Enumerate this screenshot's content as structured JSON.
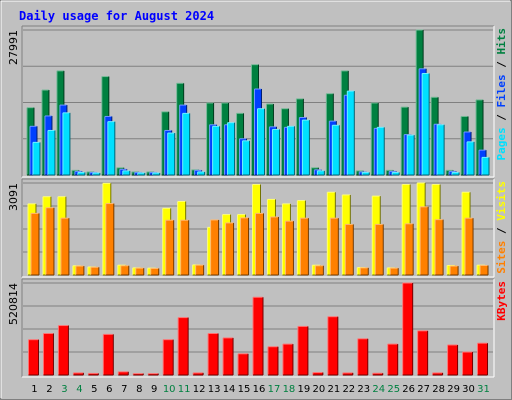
{
  "chart_data": {
    "type": "bar",
    "title": "Daily usage for August 2024",
    "categories": [
      "1",
      "2",
      "3",
      "4",
      "5",
      "6",
      "7",
      "8",
      "9",
      "10",
      "11",
      "12",
      "13",
      "14",
      "15",
      "16",
      "17",
      "18",
      "19",
      "20",
      "21",
      "22",
      "23",
      "24",
      "25",
      "26",
      "27",
      "28",
      "29",
      "30",
      "31"
    ],
    "weekend_days": [
      "3",
      "4",
      "10",
      "11",
      "17",
      "18",
      "24",
      "25",
      "31"
    ],
    "colors": {
      "hits": "#008040",
      "files": "#0040ff",
      "pages": "#00e0ff",
      "visits": "#ffff00",
      "sites": "#ff8000",
      "kbytes": "#ff0000",
      "title": "#0000ff",
      "weekday": "#000000",
      "weekend": "#008040"
    },
    "panels": [
      {
        "id": "requests",
        "max_label": "27991",
        "ymax": 27991,
        "side_labels": [
          {
            "text": "Pages",
            "color": "#00e0ff"
          },
          {
            "text": " / ",
            "color": "#000000"
          },
          {
            "text": "Files",
            "color": "#0040ff"
          },
          {
            "text": " / ",
            "color": "#000000"
          },
          {
            "text": "Hits",
            "color": "#008040"
          }
        ],
        "series": [
          {
            "key": "hits",
            "color": "#008040",
            "values": [
              13000,
              16400,
              20100,
              900,
              600,
              19000,
              1400,
              600,
              600,
              12200,
              17700,
              1000,
              13900,
              13900,
              11900,
              21300,
              13700,
              12800,
              14700,
              1400,
              15700,
              20100,
              800,
              13900,
              900,
              13100,
              27991,
              15000,
              900,
              11300,
              14500
            ]
          },
          {
            "key": "files",
            "color": "#0040ff",
            "values": [
              9400,
              11400,
              13500,
              700,
              500,
              11300,
              1100,
              500,
              500,
              8600,
              13500,
              900,
              9700,
              9700,
              7000,
              16600,
              9300,
              9200,
              11100,
              1000,
              10400,
              15400,
              600,
              9000,
              700,
              7800,
              20500,
              9800,
              700,
              8300,
              4800
            ]
          },
          {
            "key": "pages",
            "color": "#00e0ff",
            "values": [
              6300,
              8600,
              12000,
              500,
              400,
              10300,
              800,
              400,
              400,
              8100,
              11900,
              600,
              9400,
              10100,
              6600,
              12800,
              8800,
              9400,
              10600,
              800,
              9600,
              16200,
              500,
              9200,
              500,
              7700,
              19600,
              9700,
              500,
              6400,
              3400
            ]
          }
        ]
      },
      {
        "id": "visits",
        "max_label": "3091",
        "ymax": 3091,
        "side_labels": [
          {
            "text": "Sites",
            "color": "#ff8000"
          },
          {
            "text": " / ",
            "color": "#000000"
          },
          {
            "text": "Visits",
            "color": "#ffff00"
          }
        ],
        "series": [
          {
            "key": "visits",
            "color": "#ffff00",
            "values": [
              2390,
              2630,
              2630,
              310,
              270,
              3080,
              330,
              240,
              230,
              2240,
              2470,
              340,
              1600,
              2030,
              2030,
              3040,
              2540,
              2390,
              2500,
              330,
              2780,
              2690,
              250,
              2650,
              240,
              3040,
              3090,
              3040,
              320,
              2780,
              330
            ]
          },
          {
            "key": "sites",
            "color": "#ff8000",
            "values": [
              2070,
              2260,
              1910,
              300,
              260,
              2400,
              310,
              230,
              220,
              1840,
              1840,
              330,
              1850,
              1750,
              1920,
              2070,
              1950,
              1810,
              1910,
              310,
              1910,
              1700,
              240,
              1700,
              230,
              1720,
              2290,
              1860,
              300,
              1910,
              320
            ]
          }
        ]
      },
      {
        "id": "kbytes",
        "max_label": "520814",
        "ymax": 520814,
        "side_labels": [
          {
            "text": "KBytes",
            "color": "#ff0000"
          }
        ],
        "series": [
          {
            "key": "kbytes",
            "color": "#ff0000",
            "values": [
              200000,
              235000,
              280000,
              12000,
              9000,
              230000,
              18000,
              8000,
              8000,
              200000,
              325000,
              12000,
              235000,
              210000,
              120000,
              440000,
              160000,
              175000,
              275000,
              14000,
              330000,
              12000,
              205000,
              10000,
              175000,
              520814,
              250000,
              12000,
              170000,
              130000,
              180000
            ]
          }
        ]
      }
    ]
  }
}
